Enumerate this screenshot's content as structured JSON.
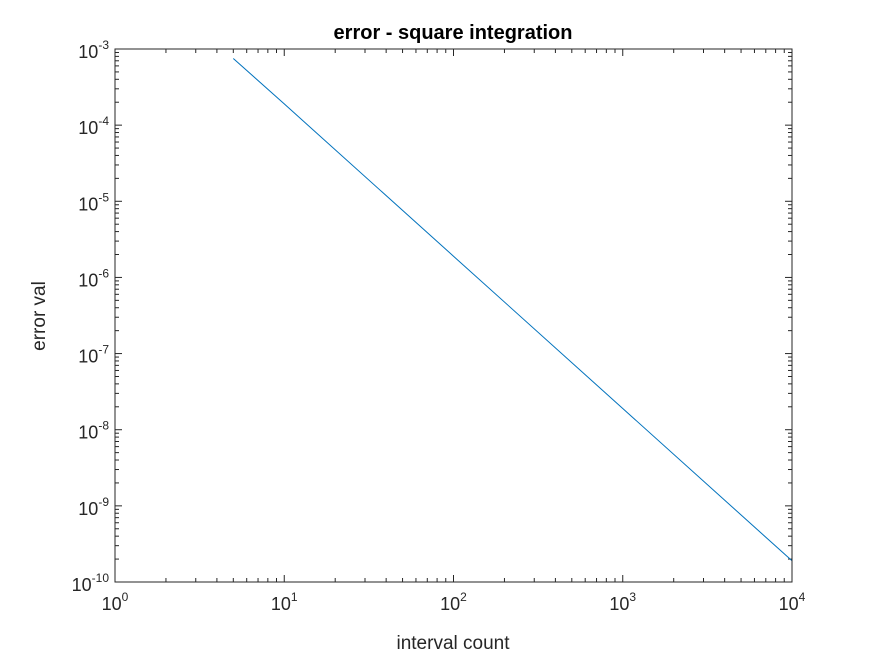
{
  "chart_data": {
    "type": "line",
    "title": "error - square integration",
    "xlabel": "interval count",
    "ylabel": "error val",
    "xscale": "log",
    "yscale": "log",
    "xlim": [
      1,
      10000
    ],
    "ylim": [
      1e-10,
      0.001
    ],
    "x_ticks": [
      {
        "base": "10",
        "exp": "0",
        "value": 1
      },
      {
        "base": "10",
        "exp": "1",
        "value": 10
      },
      {
        "base": "10",
        "exp": "2",
        "value": 100
      },
      {
        "base": "10",
        "exp": "3",
        "value": 1000
      },
      {
        "base": "10",
        "exp": "4",
        "value": 10000
      }
    ],
    "y_ticks": [
      {
        "base": "10",
        "exp": "-3",
        "value": 0.001
      },
      {
        "base": "10",
        "exp": "-4",
        "value": 0.0001
      },
      {
        "base": "10",
        "exp": "-5",
        "value": 1e-05
      },
      {
        "base": "10",
        "exp": "-6",
        "value": 1e-06
      },
      {
        "base": "10",
        "exp": "-7",
        "value": 1e-07
      },
      {
        "base": "10",
        "exp": "-8",
        "value": 1e-08
      },
      {
        "base": "10",
        "exp": "-9",
        "value": 1e-09
      },
      {
        "base": "10",
        "exp": "-10",
        "value": 1e-10
      }
    ],
    "grid": false,
    "series": [
      {
        "color": "#0072bd",
        "x": [
          5,
          10,
          100,
          1000,
          10000
        ],
        "y": [
          0.00075,
          0.00019,
          1.9e-06,
          1.9e-08,
          1.9e-10
        ]
      }
    ]
  }
}
